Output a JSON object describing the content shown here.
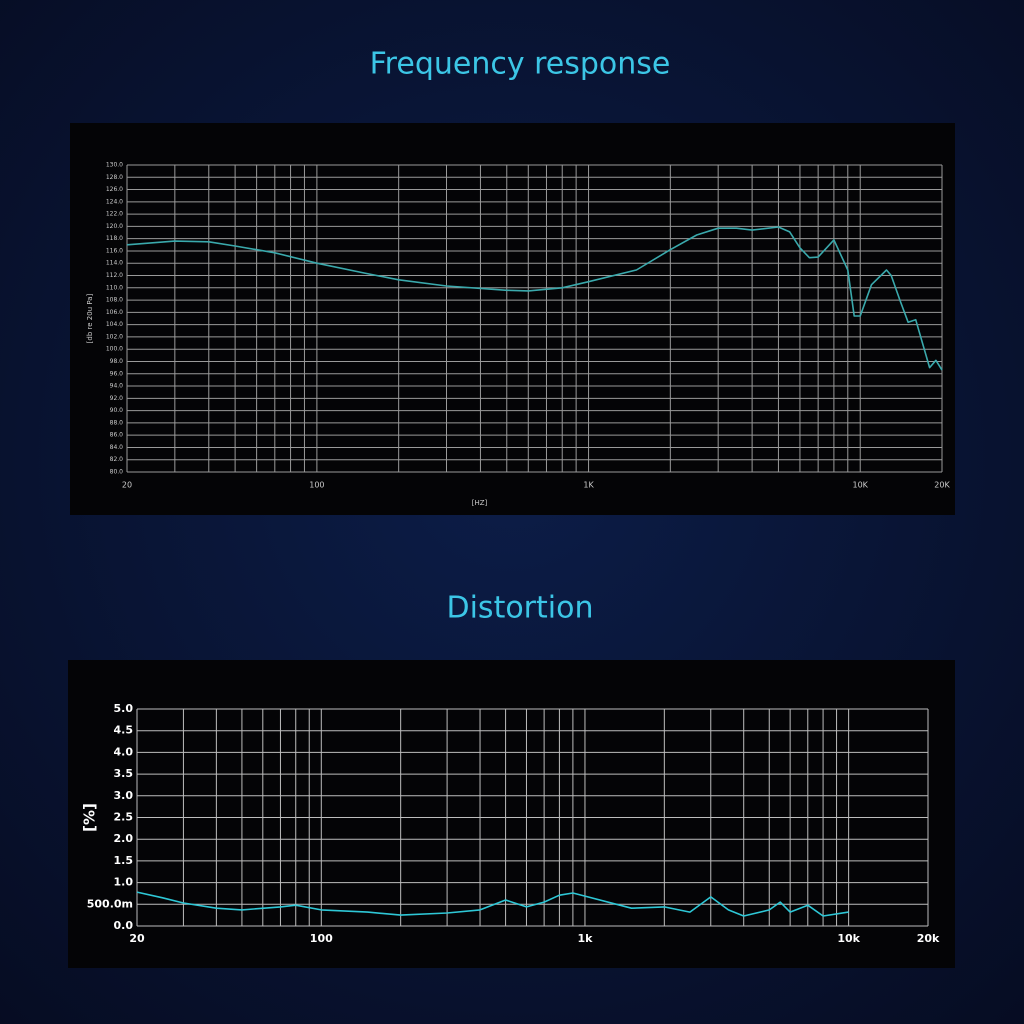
{
  "chart_data": [
    {
      "type": "line",
      "title": "Frequency response",
      "x_label": "[HZ]",
      "y_label": "[db re 20u Pa]",
      "xscale": "log",
      "grid": true,
      "x": [
        20,
        30,
        40,
        50,
        70,
        100,
        150,
        200,
        300,
        500,
        600,
        800,
        1000,
        1500,
        2000,
        2500,
        3000,
        3500,
        4000,
        5000,
        5500,
        6000,
        6500,
        7000,
        8000,
        9000,
        9500,
        10000,
        11000,
        12500,
        13000,
        14000,
        15000,
        16000,
        18000,
        19000,
        20000
      ],
      "series": [
        {
          "color": "#3aa9ac",
          "values": [
            117.0,
            117.6,
            117.5,
            116.8,
            115.7,
            114.0,
            112.4,
            111.3,
            110.3,
            109.6,
            109.5,
            110.0,
            111.0,
            112.9,
            116.2,
            118.6,
            119.7,
            119.7,
            119.4,
            119.9,
            119.1,
            116.5,
            114.9,
            115.0,
            117.8,
            112.9,
            105.4,
            105.4,
            110.5,
            112.9,
            112.0,
            108.0,
            104.4,
            104.8,
            97.0,
            98.2,
            96.6
          ]
        }
      ],
      "xlim": [
        20,
        20000
      ],
      "xticks": [
        20,
        100,
        {
          "value": 1000,
          "label": "1K"
        },
        {
          "value": 10000,
          "label": "10K"
        },
        {
          "value": 20000,
          "label": "20K"
        }
      ],
      "xgrid": [
        20,
        30,
        40,
        50,
        60,
        70,
        80,
        90,
        100,
        200,
        300,
        400,
        500,
        600,
        700,
        800,
        900,
        1000,
        2000,
        3000,
        4000,
        5000,
        6000,
        7000,
        8000,
        9000,
        10000,
        20000
      ],
      "ylim": [
        80,
        130
      ],
      "yticks": [
        {
          "value": 80,
          "label": "80.0"
        },
        {
          "value": 82,
          "label": "82.0"
        },
        {
          "value": 84,
          "label": "84.0"
        },
        {
          "value": 86,
          "label": "86.0"
        },
        {
          "value": 88,
          "label": "88.0"
        },
        {
          "value": 90,
          "label": "90.0"
        },
        {
          "value": 92,
          "label": "92.0"
        },
        {
          "value": 94,
          "label": "94.0"
        },
        {
          "value": 96,
          "label": "96.0"
        },
        {
          "value": 98,
          "label": "98.0"
        },
        {
          "value": 100,
          "label": "100.0"
        },
        {
          "value": 102,
          "label": "102.0"
        },
        {
          "value": 104,
          "label": "104.0"
        },
        {
          "value": 106,
          "label": "106.0"
        },
        {
          "value": 108,
          "label": "108.0"
        },
        {
          "value": 110,
          "label": "110.0"
        },
        {
          "value": 112,
          "label": "112.0"
        },
        {
          "value": 114,
          "label": "114.0"
        },
        {
          "value": 116,
          "label": "116.0"
        },
        {
          "value": 118,
          "label": "118.0"
        },
        {
          "value": 120,
          "label": "120.0"
        },
        {
          "value": 122,
          "label": "122.0"
        },
        {
          "value": 124,
          "label": "124.0"
        },
        {
          "value": 126,
          "label": "126.0"
        },
        {
          "value": 128,
          "label": "128.0"
        },
        {
          "value": 130,
          "label": "130.0"
        }
      ]
    },
    {
      "type": "line",
      "title": "Distortion",
      "y_label": "[%]",
      "xscale": "log",
      "grid": true,
      "x": [
        20,
        25,
        30,
        40,
        50,
        70,
        80,
        100,
        150,
        200,
        300,
        400,
        500,
        600,
        700,
        800,
        900,
        1000,
        1500,
        2000,
        2500,
        3000,
        3500,
        4000,
        5000,
        5500,
        6000,
        7000,
        8000,
        10000
      ],
      "series": [
        {
          "color": "#2ec7d6",
          "values": [
            0.78,
            0.65,
            0.53,
            0.41,
            0.37,
            0.44,
            0.48,
            0.37,
            0.32,
            0.25,
            0.3,
            0.37,
            0.6,
            0.44,
            0.55,
            0.71,
            0.76,
            0.69,
            0.41,
            0.44,
            0.32,
            0.67,
            0.37,
            0.23,
            0.37,
            0.55,
            0.32,
            0.48,
            0.23,
            0.32
          ]
        }
      ],
      "xlim": [
        20,
        20000
      ],
      "xticks": [
        20,
        100,
        {
          "value": 1000,
          "label": "1k"
        },
        {
          "value": 10000,
          "label": "10k"
        },
        {
          "value": 20000,
          "label": "20k"
        }
      ],
      "xgrid": [
        20,
        30,
        40,
        50,
        60,
        70,
        80,
        90,
        100,
        200,
        300,
        400,
        500,
        600,
        700,
        800,
        900,
        1000,
        2000,
        3000,
        4000,
        5000,
        6000,
        7000,
        8000,
        9000,
        10000,
        20000
      ],
      "ylim": [
        0,
        5
      ],
      "yticks": [
        {
          "value": 0,
          "label": "0.0"
        },
        {
          "value": 0.5,
          "label": "500.0m"
        },
        {
          "value": 1,
          "label": "1.0"
        },
        {
          "value": 1.5,
          "label": "1.5"
        },
        {
          "value": 2,
          "label": "2.0"
        },
        {
          "value": 2.5,
          "label": "2.5"
        },
        {
          "value": 3,
          "label": "3.0"
        },
        {
          "value": 3.5,
          "label": "3.5"
        },
        {
          "value": 4,
          "label": "4.0"
        },
        {
          "value": 4.5,
          "label": "4.5"
        },
        {
          "value": 5,
          "label": "5.0"
        }
      ]
    }
  ]
}
